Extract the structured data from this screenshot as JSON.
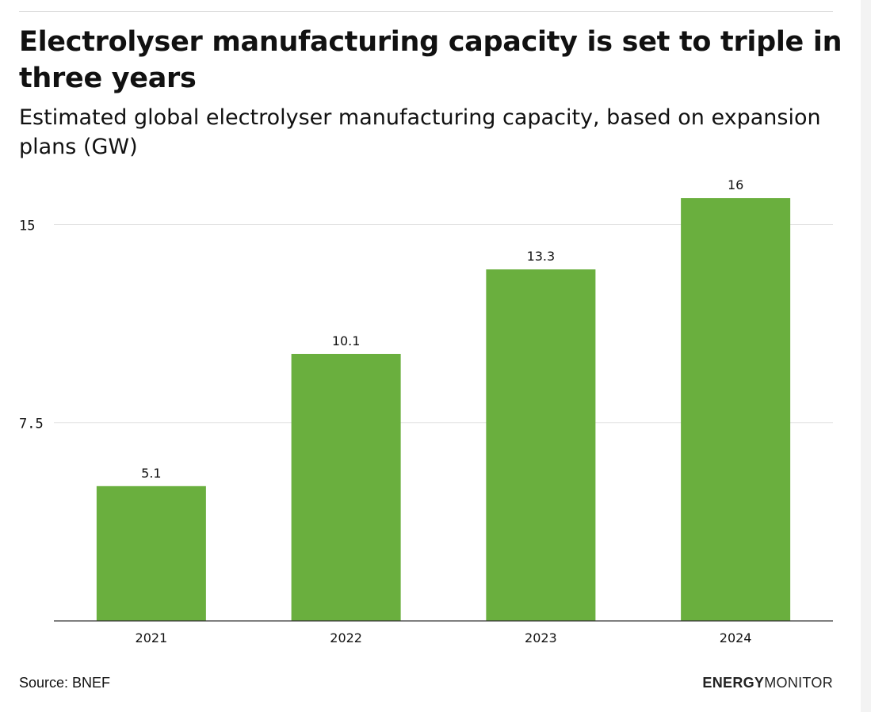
{
  "header": {
    "title": "Electrolyser manufacturing capacity is set to triple in three years",
    "subtitle": "Estimated global electrolyser manufacturing capacity, based on expansion plans (GW)"
  },
  "footer": {
    "source": "Source: BNEF",
    "brand_bold": "ENERGY",
    "brand_regular": "MONITOR"
  },
  "colors": {
    "bar": "#6aaf3e",
    "gridline": "#e3e3e3",
    "axis": "#333333",
    "text": "#111111"
  },
  "chart_data": {
    "type": "bar",
    "title": "Electrolyser manufacturing capacity is set to triple in three years",
    "subtitle": "Estimated global electrolyser manufacturing capacity, based on expansion plans (GW)",
    "categories": [
      "2021",
      "2022",
      "2023",
      "2024"
    ],
    "values": [
      5.1,
      10.1,
      13.3,
      16
    ],
    "value_labels": [
      "5.1",
      "10.1",
      "13.3",
      "16"
    ],
    "yticks": [
      7.5,
      15
    ],
    "ytick_labels": [
      "7.5",
      "15"
    ],
    "ylim": [
      0,
      16
    ],
    "xlabel": "",
    "ylabel": "",
    "grid": true,
    "legend": "none"
  }
}
